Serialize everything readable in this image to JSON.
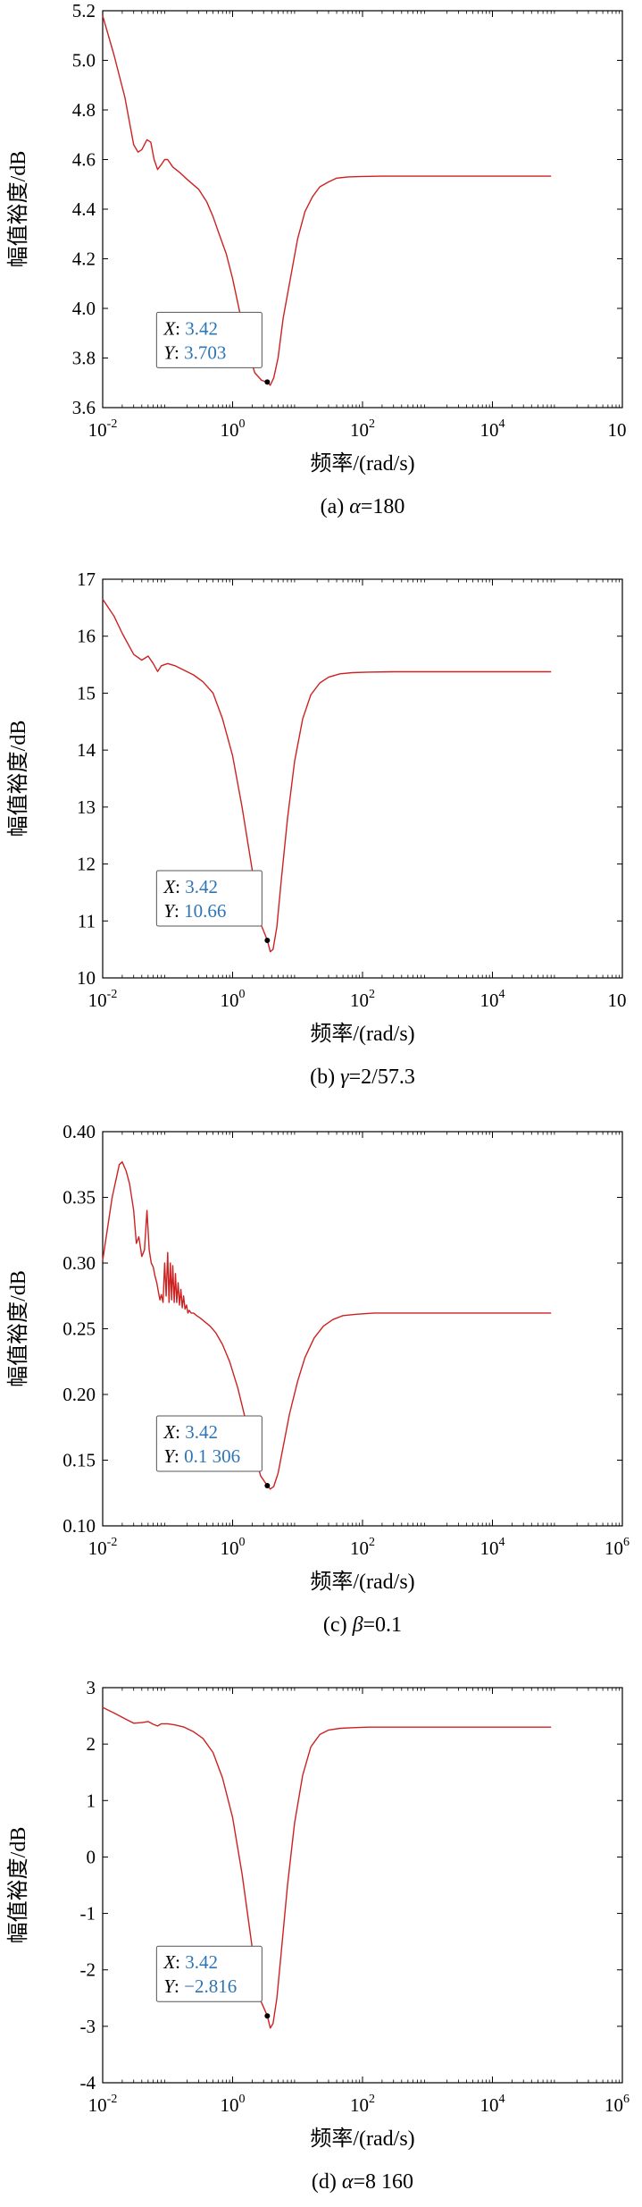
{
  "chart_data": [
    {
      "type": "line",
      "caption_prefix": "(a) ",
      "caption_var": "α",
      "caption_suffix": "=180",
      "xlabel": "频率/(rad/s)",
      "ylabel": "幅值裕度/dB",
      "x_scale": "log",
      "xlim": [
        0.01,
        1000000
      ],
      "ylim": [
        3.6,
        5.2
      ],
      "xtick_labels": [
        "10",
        "10",
        "10",
        "10",
        "10"
      ],
      "xtick_exponents": [
        "-2",
        "0",
        "2",
        "4",
        ""
      ],
      "ytick_labels": [
        "3.6",
        "3.8",
        "4.0",
        "4.2",
        "4.4",
        "4.6",
        "4.8",
        "5.0",
        "5.2"
      ],
      "ytick_values": [
        3.6,
        3.8,
        4.0,
        4.2,
        4.4,
        4.6,
        4.8,
        5.0,
        5.2
      ],
      "grid": false,
      "series": [
        {
          "color": "#cc2222",
          "x": [
            0.01,
            0.015,
            0.022,
            0.03,
            0.035,
            0.04,
            0.048,
            0.055,
            0.062,
            0.07,
            0.08,
            0.09,
            0.1,
            0.12,
            0.15,
            0.2,
            0.3,
            0.4,
            0.5,
            0.6,
            0.8,
            1.0,
            1.3,
            1.7,
            2.2,
            2.8,
            3.42,
            3.8,
            4.3,
            5.0,
            6.0,
            8.0,
            10,
            13,
            17,
            22,
            30,
            40,
            60,
            100,
            200,
            500,
            1000,
            10000,
            80000
          ],
          "y": [
            5.18,
            5.02,
            4.85,
            4.66,
            4.63,
            4.64,
            4.68,
            4.67,
            4.6,
            4.56,
            4.58,
            4.6,
            4.6,
            4.57,
            4.55,
            4.52,
            4.48,
            4.43,
            4.37,
            4.31,
            4.22,
            4.12,
            3.98,
            3.83,
            3.74,
            3.71,
            3.703,
            3.69,
            3.72,
            3.8,
            3.96,
            4.14,
            4.28,
            4.39,
            4.45,
            4.49,
            4.51,
            4.525,
            4.53,
            4.532,
            4.533,
            4.533,
            4.533,
            4.533,
            4.533
          ]
        }
      ],
      "annotation": {
        "x_label": "X",
        "x_value": "3.42",
        "y_label": "Y",
        "y_value": "3.703",
        "x": 3.42,
        "y": 3.703
      }
    },
    {
      "type": "line",
      "caption_prefix": "(b) ",
      "caption_var": "γ",
      "caption_suffix": "=2/57.3",
      "xlabel": "频率/(rad/s)",
      "ylabel": "幅值裕度/dB",
      "x_scale": "log",
      "xlim": [
        0.01,
        1000000
      ],
      "ylim": [
        10,
        17
      ],
      "xtick_labels": [
        "10",
        "10",
        "10",
        "10",
        "10"
      ],
      "xtick_exponents": [
        "-2",
        "0",
        "2",
        "4",
        ""
      ],
      "ytick_labels": [
        "10",
        "11",
        "12",
        "13",
        "14",
        "15",
        "16",
        "17"
      ],
      "ytick_values": [
        10,
        11,
        12,
        13,
        14,
        15,
        16,
        17
      ],
      "grid": false,
      "series": [
        {
          "color": "#cc2222",
          "x": [
            0.01,
            0.015,
            0.02,
            0.03,
            0.04,
            0.05,
            0.06,
            0.07,
            0.08,
            0.1,
            0.13,
            0.18,
            0.25,
            0.35,
            0.5,
            0.7,
            1.0,
            1.4,
            2.0,
            2.6,
            3.42,
            3.8,
            4.2,
            4.8,
            5.6,
            7.0,
            9.0,
            12,
            16,
            22,
            30,
            45,
            70,
            120,
            300,
            1000,
            10000,
            80000
          ],
          "y": [
            16.65,
            16.35,
            16.05,
            15.68,
            15.58,
            15.65,
            15.52,
            15.38,
            15.48,
            15.52,
            15.48,
            15.4,
            15.32,
            15.2,
            15.0,
            14.55,
            13.9,
            13.0,
            11.9,
            11.0,
            10.66,
            10.46,
            10.5,
            10.9,
            11.7,
            12.8,
            13.8,
            14.55,
            14.97,
            15.18,
            15.28,
            15.34,
            15.36,
            15.37,
            15.375,
            15.375,
            15.375,
            15.375
          ]
        }
      ],
      "annotation": {
        "x_label": "X",
        "x_value": "3.42",
        "y_label": "Y",
        "y_value": "10.66",
        "x": 3.42,
        "y": 10.66
      }
    },
    {
      "type": "line",
      "caption_prefix": "(c) ",
      "caption_var": "β",
      "caption_suffix": "=0.1",
      "xlabel": "频率/(rad/s)",
      "ylabel": "幅值裕度/dB",
      "x_scale": "log",
      "xlim": [
        0.01,
        1000000
      ],
      "ylim": [
        0.1,
        0.4
      ],
      "xtick_labels": [
        "10",
        "10",
        "10",
        "10",
        "10"
      ],
      "xtick_exponents": [
        "-2",
        "0",
        "2",
        "4",
        "6"
      ],
      "ytick_labels": [
        "0.10",
        "0.15",
        "0.20",
        "0.25",
        "0.30",
        "0.35",
        "0.40"
      ],
      "ytick_values": [
        0.1,
        0.15,
        0.2,
        0.25,
        0.3,
        0.35,
        0.4
      ],
      "grid": false,
      "series": [
        {
          "color": "#cc2222",
          "x": [
            0.01,
            0.014,
            0.018,
            0.02,
            0.023,
            0.026,
            0.03,
            0.033,
            0.036,
            0.04,
            0.044,
            0.048,
            0.052,
            0.056,
            0.06,
            0.064,
            0.068,
            0.072,
            0.076,
            0.08,
            0.085,
            0.09,
            0.095,
            0.1,
            0.105,
            0.11,
            0.115,
            0.12,
            0.126,
            0.132,
            0.138,
            0.145,
            0.152,
            0.16,
            0.168,
            0.176,
            0.185,
            0.195,
            0.205,
            0.215,
            0.23,
            0.25,
            0.28,
            0.32,
            0.38,
            0.45,
            0.55,
            0.7,
            0.9,
            1.2,
            1.6,
            2.1,
            2.7,
            3.42,
            3.8,
            4.3,
            5.0,
            6.0,
            7.5,
            10,
            13,
            18,
            25,
            35,
            50,
            80,
            150,
            400,
            1000,
            10000,
            80000
          ],
          "y": [
            0.302,
            0.35,
            0.375,
            0.377,
            0.37,
            0.36,
            0.34,
            0.315,
            0.32,
            0.305,
            0.31,
            0.34,
            0.31,
            0.3,
            0.297,
            0.29,
            0.285,
            0.278,
            0.272,
            0.276,
            0.27,
            0.3,
            0.275,
            0.308,
            0.27,
            0.3,
            0.272,
            0.298,
            0.27,
            0.292,
            0.27,
            0.285,
            0.268,
            0.28,
            0.266,
            0.275,
            0.265,
            0.268,
            0.262,
            0.264,
            0.262,
            0.262,
            0.26,
            0.258,
            0.255,
            0.252,
            0.247,
            0.238,
            0.225,
            0.205,
            0.18,
            0.157,
            0.138,
            0.1306,
            0.128,
            0.13,
            0.14,
            0.16,
            0.185,
            0.21,
            0.228,
            0.243,
            0.252,
            0.257,
            0.26,
            0.261,
            0.262,
            0.262,
            0.262,
            0.262,
            0.262
          ]
        }
      ],
      "annotation": {
        "x_label": "X",
        "x_value": "3.42",
        "y_label": "Y",
        "y_value": "0.1 306",
        "x": 3.42,
        "y": 0.1306
      }
    },
    {
      "type": "line",
      "caption_prefix": "(d) ",
      "caption_var": "α",
      "caption_suffix": "=8 160",
      "xlabel": "频率/(rad/s)",
      "ylabel": "幅值裕度/dB",
      "x_scale": "log",
      "xlim": [
        0.01,
        1000000
      ],
      "ylim": [
        -4,
        3
      ],
      "xtick_labels": [
        "10",
        "10",
        "10",
        "10",
        "10"
      ],
      "xtick_exponents": [
        "-2",
        "0",
        "2",
        "4",
        "6"
      ],
      "ytick_labels": [
        "-4",
        "-3",
        "-2",
        "-1",
        "0",
        "1",
        "2",
        "3"
      ],
      "ytick_values": [
        -4,
        -3,
        -2,
        -1,
        0,
        1,
        2,
        3
      ],
      "grid": false,
      "series": [
        {
          "color": "#cc2222",
          "x": [
            0.01,
            0.015,
            0.022,
            0.03,
            0.04,
            0.05,
            0.06,
            0.07,
            0.08,
            0.1,
            0.13,
            0.18,
            0.25,
            0.35,
            0.5,
            0.7,
            1.0,
            1.4,
            2.0,
            2.6,
            3.42,
            3.8,
            4.2,
            4.8,
            5.6,
            7.0,
            9.0,
            12,
            16,
            22,
            30,
            45,
            70,
            120,
            300,
            1000,
            10000,
            80000
          ],
          "y": [
            2.65,
            2.55,
            2.45,
            2.37,
            2.38,
            2.4,
            2.35,
            2.32,
            2.36,
            2.36,
            2.34,
            2.3,
            2.22,
            2.1,
            1.85,
            1.4,
            0.7,
            -0.3,
            -1.6,
            -2.5,
            -2.816,
            -3.03,
            -2.95,
            -2.5,
            -1.7,
            -0.5,
            0.6,
            1.45,
            1.95,
            2.17,
            2.25,
            2.28,
            2.29,
            2.3,
            2.3,
            2.3,
            2.3,
            2.3
          ]
        }
      ],
      "annotation": {
        "x_label": "X",
        "x_value": "3.42",
        "y_label": "Y",
        "y_value": "−2.816",
        "x": 3.42,
        "y": -2.816
      }
    }
  ],
  "colors": {
    "line": "#cc2222",
    "annotation_value": "#2e75b6",
    "axis": "#000000",
    "annotation_border": "#555555"
  }
}
